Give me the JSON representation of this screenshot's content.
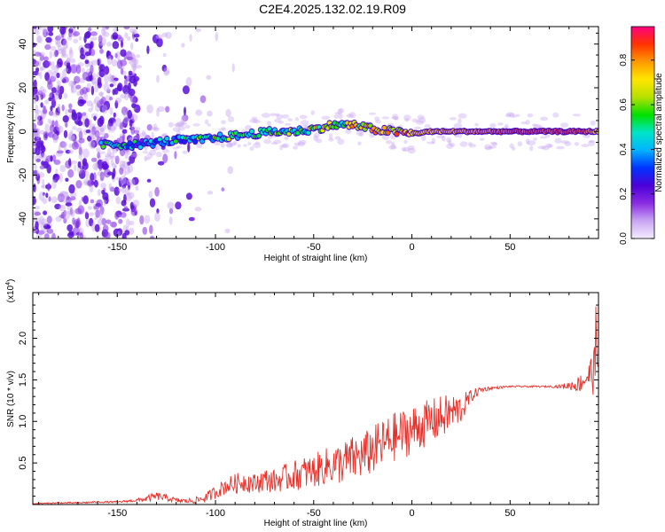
{
  "title": "C2E4.2025.132.02.19.R09",
  "chart_data": [
    {
      "type": "heatmap",
      "title": "",
      "xlabel": "Height of straight line (km)",
      "ylabel": "Frequency (Hz)",
      "xlim": [
        -193,
        95
      ],
      "ylim": [
        -49,
        48
      ],
      "xticks": [
        -150,
        -100,
        -50,
        0,
        50
      ],
      "yticks": [
        -40,
        -20,
        0,
        20,
        40
      ],
      "colorbar": {
        "label": "Normalized spectral amplitude",
        "range": [
          0.0,
          0.95
        ],
        "ticks": [
          "0.0",
          "0.2",
          "0.4",
          "0.6",
          "0.8"
        ],
        "colors": [
          "#f4ecff",
          "#c9a6f2",
          "#8a2be2",
          "#4b00d8",
          "#0033ff",
          "#00b3ff",
          "#00e5c8",
          "#00e000",
          "#b8e000",
          "#ffe600",
          "#ff9a00",
          "#ff3300",
          "#ff0080"
        ]
      },
      "ridge": {
        "x": [
          -193,
          -170,
          -155,
          -150,
          -140,
          -130,
          -120,
          -110,
          -100,
          -90,
          -80,
          -70,
          -60,
          -50,
          -40,
          -30,
          -20,
          -10,
          0,
          10,
          20,
          30,
          40,
          50,
          60,
          70,
          80,
          90,
          95
        ],
        "freq": [
          -8,
          -7,
          -6,
          -6,
          -6,
          -5,
          -4,
          -4,
          -3,
          -2,
          -1,
          0,
          0,
          1,
          3,
          3,
          1,
          0,
          -1,
          0,
          0,
          0,
          0,
          0,
          0,
          0,
          0,
          0,
          0
        ],
        "amplitude": [
          0.15,
          0.25,
          0.45,
          0.5,
          0.35,
          0.35,
          0.4,
          0.45,
          0.5,
          0.5,
          0.55,
          0.5,
          0.55,
          0.55,
          0.6,
          0.65,
          0.7,
          0.72,
          0.75,
          0.75,
          0.78,
          0.8,
          0.82,
          0.85,
          0.85,
          0.86,
          0.87,
          0.85,
          0.7
        ]
      }
    },
    {
      "type": "line",
      "title": "",
      "xlabel": "Height of straight line (km)",
      "ylabel": "SNR (10 * v/v)",
      "y_multiplier": "(x10",
      "y_multiplier_exp": "4",
      "y_multiplier_close": ")",
      "xlim": [
        -193,
        95
      ],
      "ylim": [
        0,
        2.55
      ],
      "xticks": [
        -150,
        -100,
        -50,
        0,
        50
      ],
      "yticks": [
        0.5,
        1.0,
        1.5,
        2.0
      ],
      "ytick_labels": [
        "0.5",
        "1.0",
        "1.5",
        "2.0"
      ],
      "series": [
        {
          "color": "#e8302a",
          "x": [
            -193,
            -180,
            -170,
            -160,
            -150,
            -140,
            -135,
            -130,
            -125,
            -120,
            -115,
            -110,
            -105,
            -100,
            -95,
            -90,
            -85,
            -80,
            -75,
            -70,
            -65,
            -60,
            -55,
            -50,
            -45,
            -40,
            -35,
            -30,
            -25,
            -20,
            -15,
            -10,
            -5,
            0,
            5,
            10,
            15,
            20,
            25,
            30,
            35,
            40,
            50,
            60,
            70,
            75,
            80,
            85,
            90,
            93,
            95
          ],
          "y": [
            0.01,
            0.02,
            0.02,
            0.03,
            0.03,
            0.05,
            0.07,
            0.1,
            0.08,
            0.05,
            0.04,
            0.05,
            0.08,
            0.15,
            0.22,
            0.25,
            0.28,
            0.25,
            0.3,
            0.28,
            0.32,
            0.35,
            0.38,
            0.4,
            0.45,
            0.48,
            0.5,
            0.55,
            0.58,
            0.65,
            0.72,
            0.8,
            0.85,
            0.9,
            0.95,
            1.0,
            1.05,
            1.1,
            1.15,
            1.3,
            1.38,
            1.4,
            1.42,
            1.42,
            1.42,
            1.42,
            1.43,
            1.45,
            1.55,
            1.6,
            1.65
          ],
          "noise": [
            0.005,
            0.008,
            0.01,
            0.01,
            0.01,
            0.02,
            0.04,
            0.05,
            0.04,
            0.03,
            0.03,
            0.04,
            0.06,
            0.08,
            0.1,
            0.12,
            0.13,
            0.12,
            0.14,
            0.14,
            0.16,
            0.18,
            0.2,
            0.2,
            0.22,
            0.24,
            0.26,
            0.28,
            0.28,
            0.3,
            0.3,
            0.3,
            0.3,
            0.3,
            0.28,
            0.28,
            0.26,
            0.24,
            0.18,
            0.08,
            0.04,
            0.02,
            0.01,
            0.01,
            0.01,
            0.02,
            0.05,
            0.1,
            0.18,
            0.3,
            0.4
          ]
        }
      ]
    }
  ]
}
